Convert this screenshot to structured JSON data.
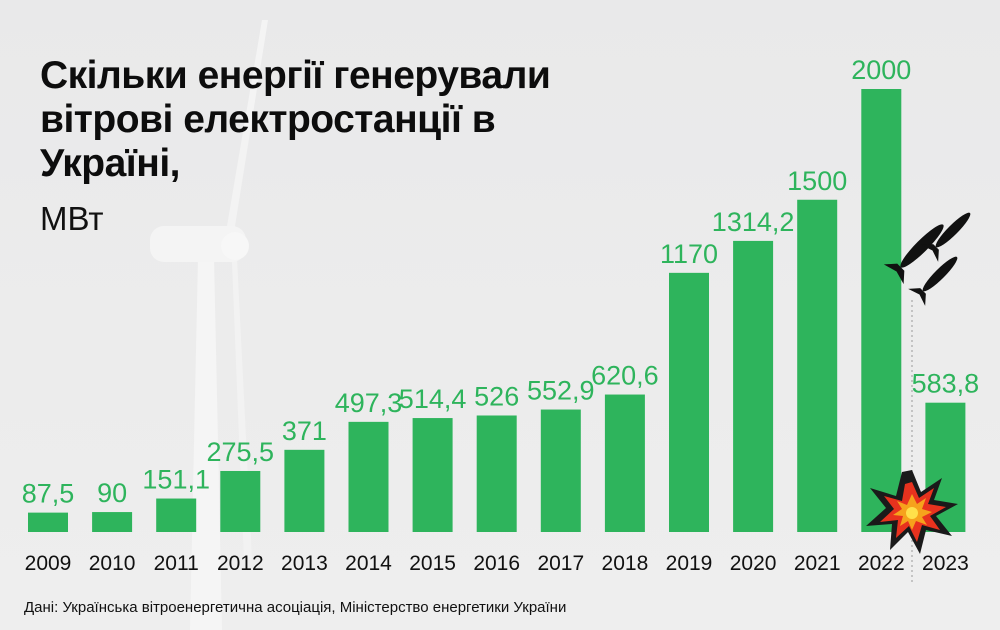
{
  "title": "Скільки енергії генерували вітрові електростанції в Україні,",
  "unit": "МВт",
  "source": "Дані: Українська вітроенергетична асоціація, Міністерство енергетики України",
  "colors": {
    "bar": "#2eb45c",
    "label": "#2eb45c",
    "axis_text": "#111111",
    "background": "#ececec"
  },
  "icons": {
    "war_marker": "missiles-icon",
    "explosion": "explosion-icon"
  },
  "chart_data": {
    "type": "bar",
    "categories": [
      "2009",
      "2010",
      "2011",
      "2012",
      "2013",
      "2014",
      "2015",
      "2016",
      "2017",
      "2018",
      "2019",
      "2020",
      "2021",
      "2022",
      "2023"
    ],
    "values": [
      87.5,
      90,
      151.1,
      275.5,
      371,
      497.3,
      514.4,
      526,
      552.9,
      620.6,
      1170,
      1314.2,
      1500,
      2000,
      583.8
    ],
    "value_labels": [
      "87,5",
      "90",
      "151,1",
      "275,5",
      "371",
      "497,3",
      "514,4",
      "526",
      "552,9",
      "620,6",
      "1170",
      "1314,2",
      "1500",
      "2000",
      "583,8"
    ],
    "ylim": [
      0,
      2000
    ],
    "grid": false,
    "legend": "none",
    "annotations": [
      "missiles icon above 2022–2023 divider",
      "explosion icon at base of 2022 bar"
    ]
  }
}
